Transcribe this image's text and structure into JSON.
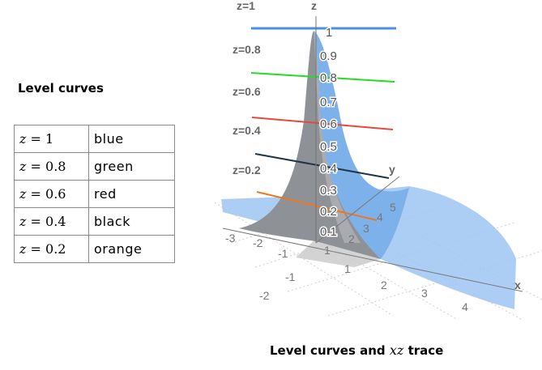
{
  "heading": "Level curves",
  "table": {
    "rows": [
      {
        "eq_var": "z",
        "eq_op": " = ",
        "eq_val": "1",
        "color_name": "blue"
      },
      {
        "eq_var": "z",
        "eq_op": " = ",
        "eq_val": "0.8",
        "color_name": "green"
      },
      {
        "eq_var": "z",
        "eq_op": " = ",
        "eq_val": "0.6",
        "color_name": "red"
      },
      {
        "eq_var": "z",
        "eq_op": " = ",
        "eq_val": "0.4",
        "color_name": "black"
      },
      {
        "eq_var": "z",
        "eq_op": " = ",
        "eq_val": "0.2",
        "color_name": "orange"
      }
    ]
  },
  "caption": {
    "text": "Level curves and ",
    "math": "xz",
    "suffix": " trace"
  },
  "plot": {
    "level_labels": [
      "z=1",
      "z=0.8",
      "z=0.6",
      "z=0.4",
      "z=0.2"
    ],
    "axis_labels": {
      "z": "z",
      "y": "y",
      "x": "x"
    },
    "z_ticks": [
      "1",
      "0.9",
      "0.8",
      "0.7",
      "0.6",
      "0.5",
      "0.4",
      "0.3",
      "0.2",
      "0.1"
    ],
    "y_ticks": [
      "2",
      "3",
      "4",
      "5"
    ],
    "x_ticks": [
      "-3",
      "-2",
      "-1",
      "1",
      "2",
      "3",
      "4"
    ],
    "x_ticks_back": [
      "-2",
      "-1",
      "1"
    ],
    "colors": {
      "blue": "#4a90e2",
      "green": "#22dd22",
      "red": "#e8473c",
      "black": "#223344",
      "orange": "#ee7722",
      "surface": "#8fbcef"
    }
  }
}
